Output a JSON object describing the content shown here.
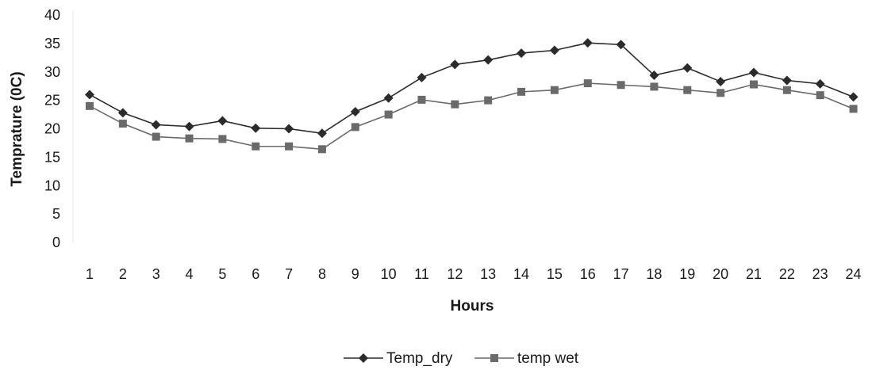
{
  "chart_data": {
    "type": "line",
    "title": "",
    "xlabel": "Hours",
    "ylabel": "Temprature (0C)",
    "categories": [
      "1",
      "2",
      "3",
      "4",
      "5",
      "6",
      "7",
      "8",
      "9",
      "10",
      "11",
      "12",
      "13",
      "14",
      "15",
      "16",
      "17",
      "18",
      "19",
      "20",
      "21",
      "22",
      "23",
      "24"
    ],
    "yticks": [
      "0",
      "5",
      "10",
      "15",
      "20",
      "25",
      "30",
      "35",
      "40"
    ],
    "ylim": [
      0,
      40
    ],
    "grid": false,
    "legend_position": "bottom",
    "series": [
      {
        "name": "Temp_dry",
        "marker": "diamond",
        "color": "#2b2b2b",
        "values": [
          26,
          22.8,
          20.7,
          20.4,
          21.4,
          20.1,
          20.0,
          19.2,
          23.0,
          25.4,
          29.0,
          31.3,
          32.1,
          33.3,
          33.8,
          35.1,
          34.8,
          29.4,
          30.7,
          28.3,
          29.9,
          28.5,
          27.9,
          25.6
        ]
      },
      {
        "name": "temp wet",
        "marker": "square",
        "color": "#6a6a6a",
        "values": [
          24,
          20.9,
          18.6,
          18.3,
          18.2,
          16.9,
          16.9,
          16.4,
          20.3,
          22.5,
          25.1,
          24.3,
          25.0,
          26.5,
          26.8,
          28.0,
          27.7,
          27.4,
          26.8,
          26.3,
          27.8,
          26.8,
          25.9,
          23.5
        ]
      }
    ]
  }
}
